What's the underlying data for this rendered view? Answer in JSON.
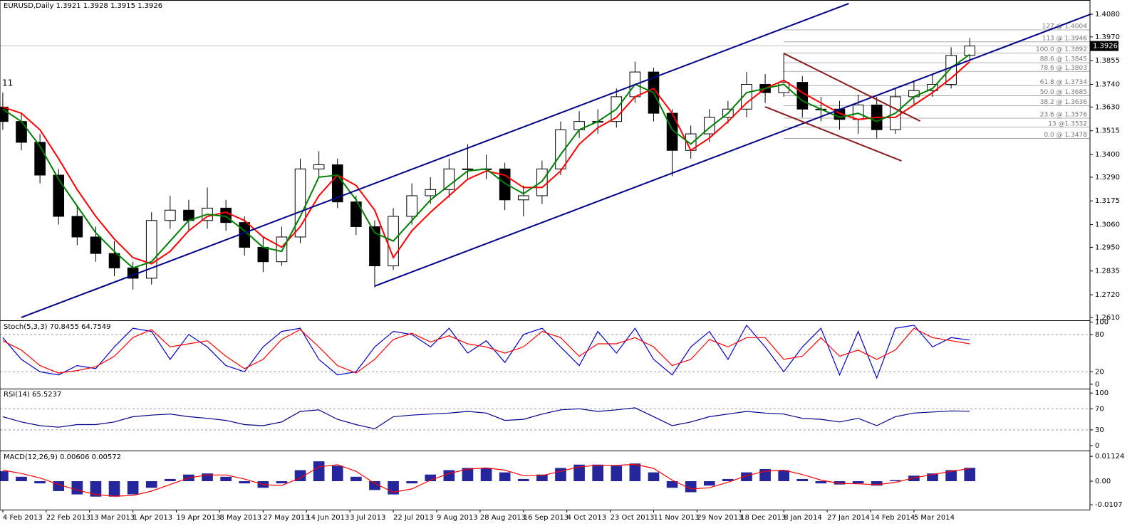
{
  "chart_data": [
    {
      "type": "candlestick",
      "title": "EURUSD,Daily  1.3921 1.3928 1.3915 1.3926",
      "annotation": "11",
      "last": 1.3926,
      "xlim": [
        -0.9,
        350.8
      ],
      "ylim": [
        1.2596,
        1.4149
      ],
      "xticks": [
        {
          "value": 0,
          "label": "4 Feb 2013"
        },
        {
          "value": 14,
          "label": "22 Feb 2013"
        },
        {
          "value": 28,
          "label": "13 Mar 2013"
        },
        {
          "value": 42,
          "label": "1 Apr 2013"
        },
        {
          "value": 56,
          "label": "19 Apr 2013"
        },
        {
          "value": 70,
          "label": "8 May 2013"
        },
        {
          "value": 84,
          "label": "27 May 2013"
        },
        {
          "value": 98,
          "label": "14 Jun 2013"
        },
        {
          "value": 112,
          "label": "3 Jul 2013"
        },
        {
          "value": 126,
          "label": "22 Jul 2013"
        },
        {
          "value": 140,
          "label": "9 Aug 2013"
        },
        {
          "value": 154,
          "label": "28 Aug 2013"
        },
        {
          "value": 168,
          "label": "16 Sep 2013"
        },
        {
          "value": 182,
          "label": "4 Oct 2013"
        },
        {
          "value": 196,
          "label": "23 Oct 2013"
        },
        {
          "value": 210,
          "label": "11 Nov 2013"
        },
        {
          "value": 224,
          "label": "29 Nov 2013"
        },
        {
          "value": 238,
          "label": "18 Dec 2013"
        },
        {
          "value": 252,
          "label": "8 Jan 2014"
        },
        {
          "value": 266,
          "label": "27 Jan 2014"
        },
        {
          "value": 280,
          "label": "14 Feb 2014"
        },
        {
          "value": 294,
          "label": "5 Mar 2014"
        }
      ],
      "yticks": [
        {
          "value": 1.408,
          "label": "1.4080"
        },
        {
          "value": 1.397,
          "label": "1.3970"
        },
        1.3855,
        {
          "value": 1.374,
          "label": "1.3740"
        },
        {
          "value": 1.363,
          "label": "1.3630"
        },
        1.3515,
        {
          "value": 1.34,
          "label": "1.3400"
        },
        {
          "value": 1.329,
          "label": "1.3290"
        },
        1.3175,
        {
          "value": 1.306,
          "label": "1.3060"
        },
        {
          "value": 1.295,
          "label": "1.2950"
        },
        1.2835,
        {
          "value": 1.272,
          "label": "1.2720"
        },
        {
          "value": 1.261,
          "label": "1.2610"
        }
      ],
      "x": [
        0,
        6,
        12,
        18,
        24,
        30,
        36,
        42,
        48,
        54,
        60,
        66,
        72,
        78,
        84,
        90,
        96,
        102,
        108,
        114,
        120,
        126,
        132,
        138,
        144,
        150,
        156,
        162,
        168,
        174,
        180,
        186,
        192,
        198,
        204,
        210,
        216,
        222,
        228,
        234,
        240,
        246,
        252,
        258,
        264,
        270,
        276,
        282,
        288,
        294,
        300,
        306,
        312
      ],
      "open": [
        1.363,
        1.356,
        1.3459,
        1.33,
        1.31,
        1.3,
        1.292,
        1.285,
        1.28,
        1.308,
        1.313,
        1.308,
        1.314,
        1.307,
        1.295,
        1.288,
        1.3,
        1.333,
        1.335,
        1.317,
        1.305,
        1.286,
        1.31,
        1.32,
        1.323,
        1.333,
        1.333,
        1.333,
        1.318,
        1.32,
        1.333,
        1.352,
        1.356,
        1.356,
        1.368,
        1.38,
        1.36,
        1.342,
        1.35,
        1.358,
        1.362,
        1.374,
        1.37,
        1.375,
        1.362,
        1.362,
        1.357,
        1.364,
        1.352,
        1.368,
        1.371,
        1.374,
        1.388
      ],
      "high": [
        1.37,
        1.36,
        1.35,
        1.333,
        1.315,
        1.305,
        1.298,
        1.288,
        1.312,
        1.32,
        1.318,
        1.324,
        1.318,
        1.31,
        1.3,
        1.305,
        1.338,
        1.3416,
        1.338,
        1.32,
        1.308,
        1.314,
        1.326,
        1.329,
        1.338,
        1.345,
        1.34,
        1.336,
        1.325,
        1.337,
        1.356,
        1.361,
        1.362,
        1.372,
        1.385,
        1.382,
        1.362,
        1.354,
        1.362,
        1.366,
        1.38,
        1.379,
        1.3892,
        1.378,
        1.368,
        1.366,
        1.369,
        1.368,
        1.372,
        1.376,
        1.379,
        1.392,
        1.3965
      ],
      "low": [
        1.352,
        1.342,
        1.326,
        1.306,
        1.296,
        1.288,
        1.281,
        1.2745,
        1.277,
        1.304,
        1.303,
        1.304,
        1.303,
        1.291,
        1.283,
        1.286,
        1.297,
        1.329,
        1.314,
        1.301,
        1.2755,
        1.284,
        1.306,
        1.316,
        1.319,
        1.328,
        1.328,
        1.313,
        1.31,
        1.316,
        1.33,
        1.348,
        1.35,
        1.353,
        1.365,
        1.356,
        1.3295,
        1.338,
        1.346,
        1.355,
        1.358,
        1.365,
        1.368,
        1.358,
        1.356,
        1.352,
        1.35,
        1.3478,
        1.35,
        1.364,
        1.368,
        1.372,
        1.386
      ],
      "close": [
        1.356,
        1.3459,
        1.33,
        1.31,
        1.3,
        1.292,
        1.285,
        1.28,
        1.308,
        1.313,
        1.308,
        1.314,
        1.307,
        1.295,
        1.288,
        1.3,
        1.333,
        1.335,
        1.317,
        1.305,
        1.286,
        1.31,
        1.32,
        1.323,
        1.333,
        1.333,
        1.333,
        1.318,
        1.32,
        1.333,
        1.352,
        1.356,
        1.356,
        1.368,
        1.38,
        1.36,
        1.342,
        1.35,
        1.358,
        1.362,
        1.374,
        1.37,
        1.375,
        1.362,
        1.362,
        1.357,
        1.364,
        1.352,
        1.368,
        1.371,
        1.374,
        1.388,
        1.3926
      ],
      "up_color": "#ffffff",
      "down_color": "#000000",
      "overlays": [
        {
          "color": "#ff0000",
          "values": [
            1.363,
            1.36,
            1.352,
            1.338,
            1.323,
            1.31,
            1.299,
            1.29,
            1.287,
            1.293,
            1.303,
            1.31,
            1.312,
            1.308,
            1.3,
            1.295,
            1.305,
            1.32,
            1.33,
            1.325,
            1.313,
            1.29,
            1.303,
            1.312,
            1.32,
            1.328,
            1.332,
            1.33,
            1.324,
            1.324,
            1.332,
            1.345,
            1.353,
            1.358,
            1.368,
            1.372,
            1.36,
            1.342,
            1.348,
            1.356,
            1.365,
            1.372,
            1.376,
            1.37,
            1.365,
            1.36,
            1.357,
            1.358,
            1.358,
            1.364,
            1.37,
            1.377,
            1.385
          ]
        },
        {
          "color": "#008000",
          "values": [
            1.362,
            1.356,
            1.344,
            1.328,
            1.315,
            1.302,
            1.293,
            1.285,
            1.288,
            1.298,
            1.308,
            1.311,
            1.31,
            1.303,
            1.295,
            1.293,
            1.31,
            1.329,
            1.33,
            1.318,
            1.302,
            1.298,
            1.308,
            1.318,
            1.325,
            1.332,
            1.333,
            1.326,
            1.321,
            1.327,
            1.34,
            1.352,
            1.356,
            1.362,
            1.374,
            1.37,
            1.352,
            1.345,
            1.353,
            1.36,
            1.37,
            1.372,
            1.374,
            1.366,
            1.362,
            1.358,
            1.36,
            1.356,
            1.36,
            1.368,
            1.372,
            1.382,
            1.3885
          ]
        }
      ],
      "trendlines": [
        {
          "color": "#00008b",
          "x": [
            6,
            273
          ],
          "y": [
            1.261,
            1.4132
          ]
        },
        {
          "color": "#00008b",
          "x": [
            120,
            351
          ],
          "y": [
            1.2762,
            1.408
          ]
        },
        {
          "color": "#8b1a1a",
          "x": [
            252,
            296
          ],
          "y": [
            1.389,
            1.3562
          ]
        },
        {
          "color": "#8b1a1a",
          "x": [
            246,
            290
          ],
          "y": [
            1.3631,
            1.3369
          ]
        }
      ],
      "levels": [
        {
          "value": 1.4004,
          "label": "127 @ 1.4004"
        },
        {
          "value": 1.3946,
          "label": "113 @ 1.3946"
        },
        {
          "value": 1.3892,
          "label": "100.0 @ 1.3892"
        },
        {
          "value": 1.3845,
          "label": "88.6 @ 1.3845"
        },
        {
          "value": 1.3803,
          "label": "78.6 @ 1.3803"
        },
        {
          "value": 1.3734,
          "label": "61.8 @ 1.3734"
        },
        {
          "value": 1.3685,
          "label": "50.0 @ 1.3685"
        },
        {
          "value": 1.3636,
          "label": "38.2 @ 1.3636"
        },
        {
          "value": 1.3576,
          "label": "23.6 @ 1.3576"
        },
        {
          "value": 1.3532,
          "label": "13 @1.3532"
        },
        {
          "value": 1.3478,
          "label": "0.0 @ 1.3478"
        }
      ]
    },
    {
      "type": "line",
      "title": "Stoch(5,3,3) 70.8455 64.7549",
      "ylim": [
        -6,
        104
      ],
      "yticks": [
        100,
        80,
        20,
        0
      ],
      "levels": [
        80,
        20
      ],
      "series": [
        {
          "color": "#0000cd",
          "values": [
            75,
            40,
            20,
            15,
            30,
            25,
            60,
            90,
            85,
            40,
            80,
            60,
            30,
            20,
            60,
            85,
            90,
            40,
            15,
            20,
            60,
            85,
            80,
            60,
            90,
            50,
            70,
            35,
            80,
            90,
            60,
            30,
            85,
            50,
            90,
            40,
            15,
            60,
            85,
            40,
            95,
            60,
            20,
            60,
            90,
            15,
            85,
            10,
            90,
            95,
            60,
            75,
            71
          ]
        },
        {
          "color": "#ff0000",
          "values": [
            70,
            55,
            30,
            18,
            22,
            28,
            45,
            75,
            88,
            60,
            65,
            70,
            45,
            25,
            40,
            72,
            88,
            60,
            30,
            18,
            40,
            72,
            82,
            68,
            78,
            65,
            60,
            50,
            60,
            85,
            75,
            45,
            65,
            65,
            75,
            60,
            30,
            40,
            72,
            60,
            75,
            75,
            40,
            45,
            75,
            45,
            55,
            40,
            55,
            90,
            75,
            70,
            65
          ]
        }
      ]
    },
    {
      "type": "line",
      "title": "RSI(14) 65.5237",
      "ylim": [
        -8,
        107
      ],
      "yticks": [
        100,
        70,
        30,
        0
      ],
      "levels": [
        70,
        30
      ],
      "series": [
        {
          "color": "#00008b",
          "values": [
            55,
            45,
            38,
            35,
            40,
            40,
            45,
            55,
            58,
            60,
            55,
            52,
            48,
            40,
            38,
            45,
            65,
            68,
            50,
            40,
            32,
            55,
            58,
            60,
            62,
            65,
            62,
            48,
            50,
            60,
            68,
            70,
            65,
            68,
            72,
            55,
            38,
            45,
            55,
            60,
            65,
            62,
            60,
            52,
            50,
            45,
            52,
            38,
            55,
            62,
            64,
            66,
            65.5
          ]
        }
      ]
    },
    {
      "type": "macd",
      "title": "MACD(12,26,9) 0.00606 0.00572",
      "ylim": [
        -0.0129,
        0.01355
      ],
      "yticks": [
        0.01124,
        {
          "value": 0,
          "label": "0.00"
        },
        -0.0107
      ],
      "bars": {
        "color": "#00008b",
        "values": [
          0.0045,
          0.002,
          -0.001,
          -0.0045,
          -0.006,
          -0.007,
          -0.007,
          -0.006,
          -0.003,
          0.001,
          0.003,
          0.0035,
          0.002,
          -0.001,
          -0.003,
          -0.001,
          0.005,
          0.009,
          0.007,
          0.002,
          -0.004,
          -0.006,
          -0.001,
          0.003,
          0.005,
          0.006,
          0.006,
          0.004,
          0.001,
          0.003,
          0.006,
          0.0075,
          0.0075,
          0.007,
          0.008,
          0.004,
          -0.003,
          -0.005,
          -0.002,
          0.001,
          0.004,
          0.0055,
          0.005,
          0.001,
          -0.001,
          -0.0015,
          -0.001,
          -0.002,
          0.0005,
          0.0025,
          0.0035,
          0.005,
          0.00606
        ]
      },
      "series": [
        {
          "color": "#ff0000",
          "values": [
            0.005,
            0.0035,
            0.0015,
            -0.0015,
            -0.004,
            -0.006,
            -0.0068,
            -0.0065,
            -0.0045,
            -0.0015,
            0.0015,
            0.0028,
            0.0028,
            0.001,
            -0.0015,
            -0.002,
            0.0015,
            0.0065,
            0.0075,
            0.0045,
            -0.001,
            -0.005,
            -0.0035,
            0.0005,
            0.0035,
            0.0055,
            0.006,
            0.005,
            0.0025,
            0.0025,
            0.0045,
            0.0065,
            0.0072,
            0.0072,
            0.0076,
            0.0058,
            0.0005,
            -0.0035,
            -0.003,
            -0.0005,
            0.0025,
            0.0045,
            0.005,
            0.003,
            0.0005,
            -0.001,
            -0.0012,
            -0.0016,
            -0.0005,
            0.0015,
            0.003,
            0.0045,
            0.00572
          ]
        }
      ]
    }
  ]
}
